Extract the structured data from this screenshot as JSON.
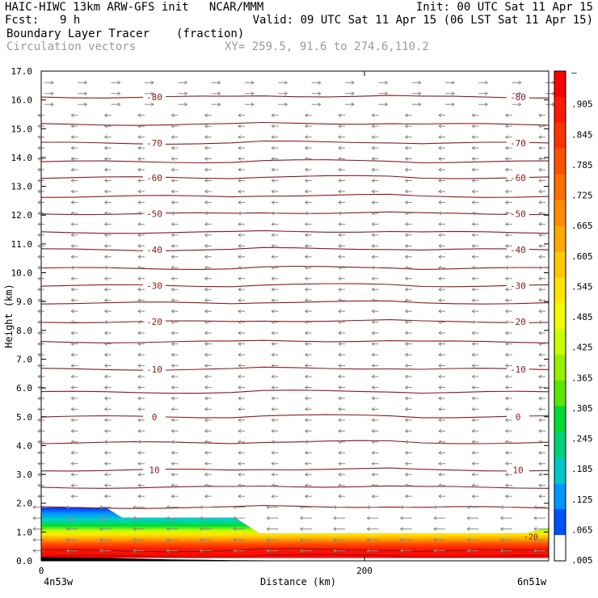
{
  "header": {
    "title": "HAIC-HIWC 13km ARW-GFS init   NCAR/MMM",
    "init": "Init: 00 UTC Sat 11 Apr 15",
    "fcst_label": "Fcst:",
    "fcst_value": "9 h",
    "valid": "Valid: 09 UTC Sat 11 Apr 15 (06 LST Sat 11 Apr 15)",
    "field": "Boundary Layer Tracer",
    "units": "(fraction)",
    "vectors": "Circulation vectors",
    "xy": "XY= 259.5, 91.6 to 274.6,110.2"
  },
  "colors": {
    "contour": "#8b1a1a",
    "vector": "#888888",
    "terrain": "#000000"
  },
  "chart_data": {
    "type": "heatmap",
    "xlabel": "Distance (km)",
    "ylabel": "Height (km)",
    "xlim": [
      0,
      314
    ],
    "ylim": [
      0,
      17
    ],
    "x_ticks": [
      {
        "v": 0,
        "label": "0"
      },
      {
        "v": 200,
        "label": "200"
      }
    ],
    "x_end_labels": {
      "left": "4n53w",
      "right": "6n51w"
    },
    "y_ticks": [
      "0.0",
      "1.0",
      "2.0",
      "3.0",
      "4.0",
      "5.0",
      "6.0",
      "7.0",
      "8.0",
      "9.0",
      "10.0",
      "11.0",
      "12.0",
      "13.0",
      "14.0",
      "15.0",
      "16.0",
      "17.0"
    ],
    "colorbar": {
      "labels": [
        "–",
        ".905",
        ".845",
        ".785",
        ".725",
        ".665",
        ".605",
        ".545",
        ".485",
        ".425",
        ".365",
        ".305",
        ".245",
        ".185",
        ".125",
        ".065",
        ".005"
      ],
      "colors": [
        "#ff0000",
        "#ff1a00",
        "#ff3300",
        "#ff5000",
        "#ff6e00",
        "#ff8c00",
        "#ffa800",
        "#ffc800",
        "#ffe400",
        "#f0ff00",
        "#c8ff00",
        "#96f000",
        "#5ae600",
        "#00dc32",
        "#00d278",
        "#00c8c8",
        "#0096ff",
        "#0050ff",
        "#ffffff"
      ]
    },
    "tracer_top": [
      [
        0,
        1.85
      ],
      [
        40,
        1.85
      ],
      [
        50,
        1.5
      ],
      [
        120,
        1.5
      ],
      [
        135,
        0.95
      ],
      [
        300,
        0.95
      ],
      [
        314,
        1.15
      ]
    ],
    "tracer_bottom": [
      [
        0,
        0.1
      ],
      [
        314,
        0.1
      ]
    ],
    "terrain": [
      [
        0,
        0.12
      ],
      [
        40,
        0.1
      ],
      [
        80,
        0.05
      ],
      [
        120,
        0.02
      ],
      [
        200,
        0.0
      ],
      [
        314,
        0.0
      ]
    ],
    "temperature_contours": [
      {
        "y": 0.15
      },
      {
        "y": 0.35
      },
      {
        "y": 1.85
      },
      {
        "y": 2.55
      },
      {
        "y": 3.15,
        "label": "10"
      },
      {
        "y": 4.1
      },
      {
        "y": 5.0,
        "label": "0"
      },
      {
        "y": 5.85
      },
      {
        "y": 6.65,
        "label": "-10"
      },
      {
        "y": 7.6
      },
      {
        "y": 8.3,
        "label": "-20"
      },
      {
        "y": 8.95
      },
      {
        "y": 9.55,
        "label": "-30"
      },
      {
        "y": 10.15
      },
      {
        "y": 10.8,
        "label": "-40"
      },
      {
        "y": 11.4
      },
      {
        "y": 12.05,
        "label": "-50"
      },
      {
        "y": 12.65
      },
      {
        "y": 13.3,
        "label": "-60"
      },
      {
        "y": 13.85
      },
      {
        "y": 14.5,
        "label": "-70"
      },
      {
        "y": 15.15
      },
      {
        "y": 16.1,
        "label": "-80"
      }
    ],
    "contour_label_near_surface": "-20"
  }
}
